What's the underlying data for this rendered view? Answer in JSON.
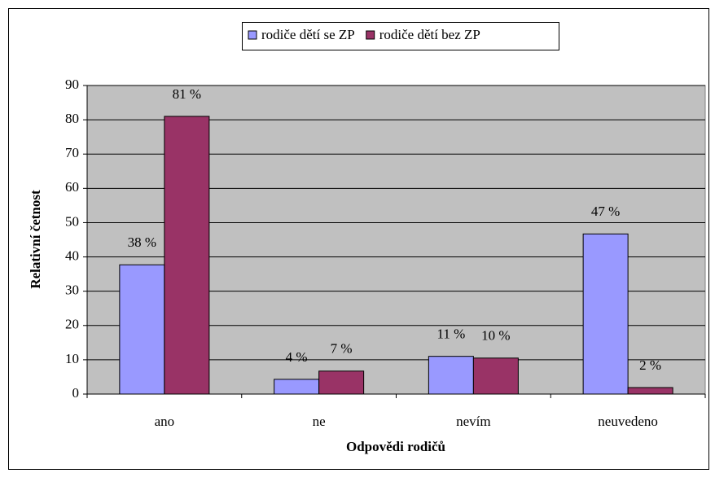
{
  "chart_data": {
    "type": "bar",
    "categories": [
      "ano",
      "ne",
      "nevím",
      "neuvedeno"
    ],
    "series": [
      {
        "name": "rodiče dětí se ZP",
        "color": "#9999ff",
        "values": [
          37.7,
          4.3,
          11,
          46.7
        ],
        "value_labels": [
          "38 %",
          "4 %",
          "11 %",
          "47 %"
        ]
      },
      {
        "name": "rodiče dětí bez ZP",
        "color": "#993366",
        "values": [
          81,
          6.7,
          10.5,
          1.9
        ],
        "value_labels": [
          "81 %",
          "7 %",
          "10 %",
          "2 %"
        ]
      }
    ],
    "x_label": "Odpovědi rodičů",
    "y_label": "Relativní četnost",
    "ylim": [
      0,
      90
    ],
    "yticks": [
      0,
      10,
      20,
      30,
      40,
      50,
      60,
      70,
      80,
      90
    ],
    "grid": true,
    "legend": "top"
  }
}
